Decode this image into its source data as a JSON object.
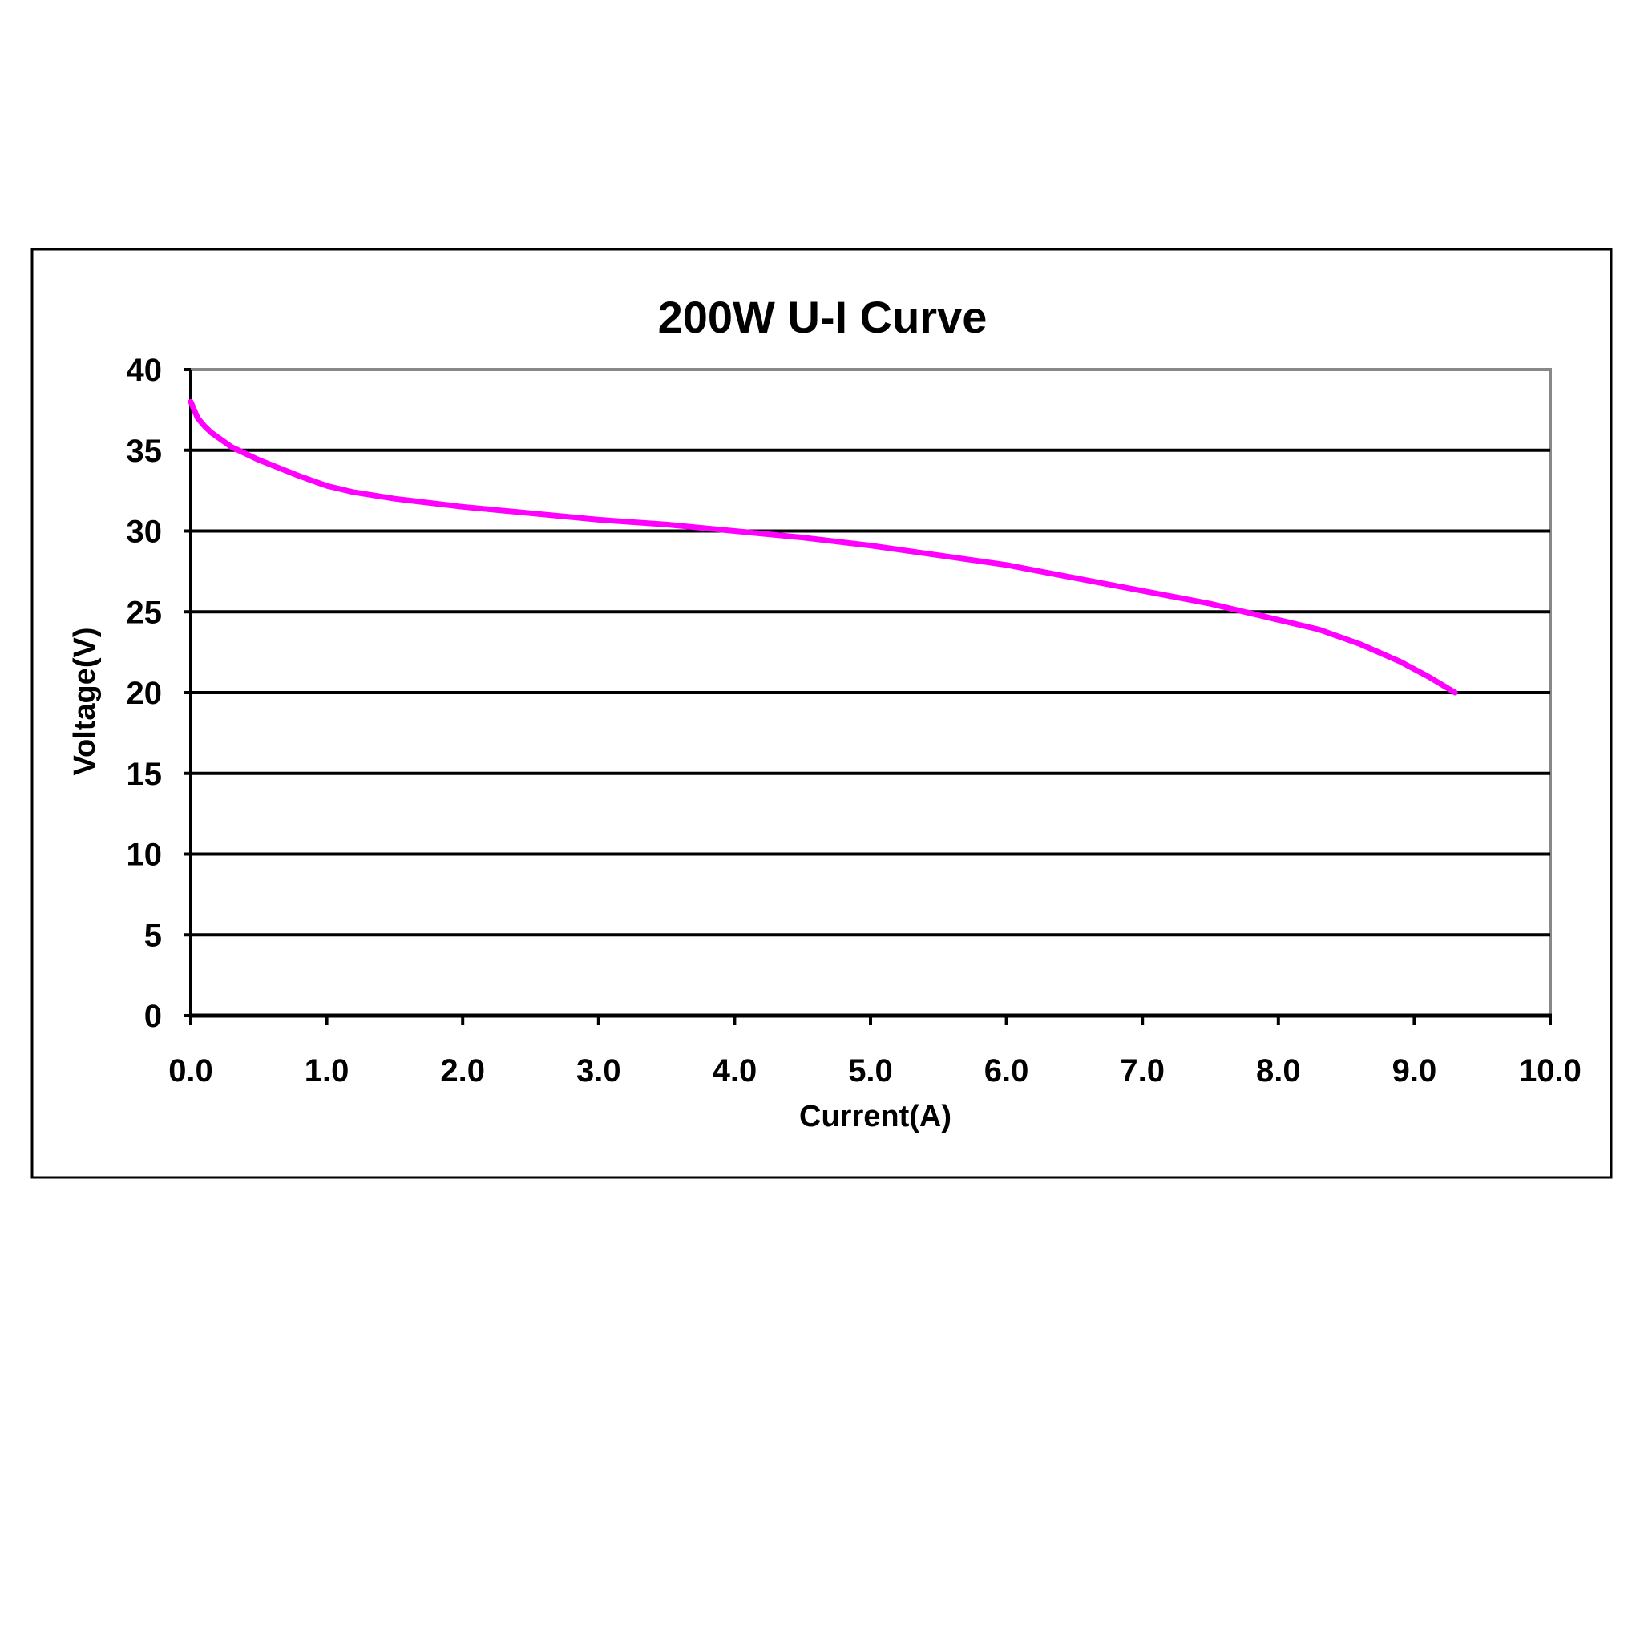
{
  "chart_data": {
    "type": "line",
    "title": "200W U-I Curve",
    "xlabel": "Current(A)",
    "ylabel": "Voltage(V)",
    "xlim": [
      0,
      10
    ],
    "ylim": [
      0,
      40
    ],
    "x_ticks": [
      "0.0",
      "1.0",
      "2.0",
      "3.0",
      "4.0",
      "5.0",
      "6.0",
      "7.0",
      "8.0",
      "9.0",
      "10.0"
    ],
    "y_ticks": [
      "0",
      "5",
      "10",
      "15",
      "20",
      "25",
      "30",
      "35",
      "40"
    ],
    "grid": "horizontal",
    "series": [
      {
        "color": "#ff00ff",
        "x": [
          0.0,
          0.05,
          0.1,
          0.15,
          0.3,
          0.5,
          0.8,
          1.0,
          1.2,
          1.5,
          2.0,
          2.5,
          3.0,
          3.5,
          4.0,
          4.5,
          5.0,
          5.5,
          6.0,
          6.5,
          7.0,
          7.5,
          8.0,
          8.3,
          8.6,
          8.9,
          9.1,
          9.3
        ],
        "y": [
          38.0,
          37.0,
          36.5,
          36.1,
          35.2,
          34.4,
          33.4,
          32.8,
          32.4,
          32.0,
          31.5,
          31.1,
          30.7,
          30.4,
          30.0,
          29.6,
          29.1,
          28.5,
          27.9,
          27.1,
          26.3,
          25.5,
          24.5,
          23.9,
          23.0,
          21.9,
          21.0,
          20.0
        ]
      }
    ]
  }
}
